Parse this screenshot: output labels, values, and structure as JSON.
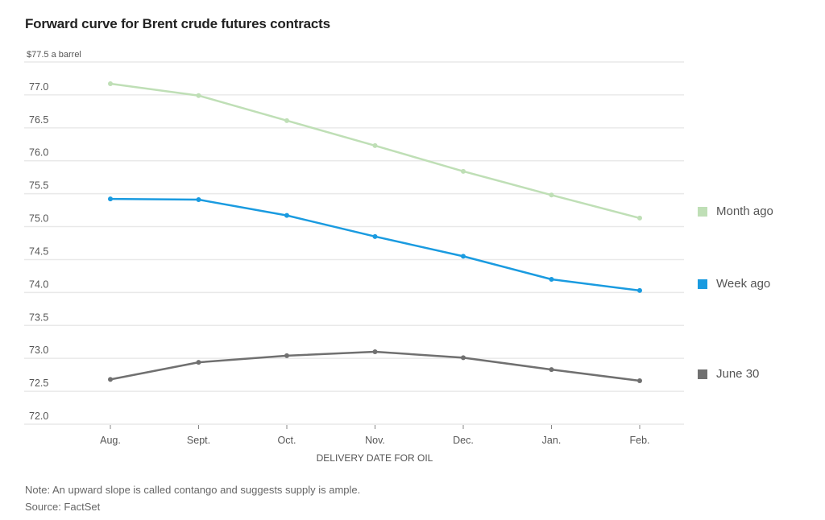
{
  "chart_data": {
    "type": "line",
    "title": "Forward curve for Brent crude futures contracts",
    "ylabel": "$77.5 a barrel",
    "xlabel": "DELIVERY DATE FOR OIL",
    "categories": [
      "Aug.",
      "Sept.",
      "Oct.",
      "Nov.",
      "Dec.",
      "Jan.",
      "Feb."
    ],
    "ylim": [
      72.0,
      77.5
    ],
    "yticks": [
      72.0,
      72.5,
      73.0,
      73.5,
      74.0,
      74.5,
      75.0,
      75.5,
      76.0,
      76.5,
      77.0,
      77.5
    ],
    "ytick_labels": [
      "72.0",
      "72.5",
      "73.0",
      "73.5",
      "74.0",
      "74.5",
      "75.0",
      "75.5",
      "76.0",
      "76.5",
      "77.0",
      "$77.5 a barrel"
    ],
    "grid": true,
    "legend_position": "right",
    "series": [
      {
        "name": "Month ago",
        "color": "#bfdfb6",
        "values": [
          77.17,
          76.99,
          76.61,
          76.23,
          75.84,
          75.48,
          75.13
        ]
      },
      {
        "name": "Week ago",
        "color": "#1a9be0",
        "values": [
          75.42,
          75.41,
          75.17,
          74.85,
          74.55,
          74.2,
          74.03
        ]
      },
      {
        "name": "June 30",
        "color": "#707070",
        "values": [
          72.68,
          72.94,
          73.04,
          73.1,
          73.01,
          72.83,
          72.66
        ]
      }
    ],
    "note": "Note: An upward slope is called contango and suggests supply is ample.",
    "source": "Source: FactSet"
  }
}
